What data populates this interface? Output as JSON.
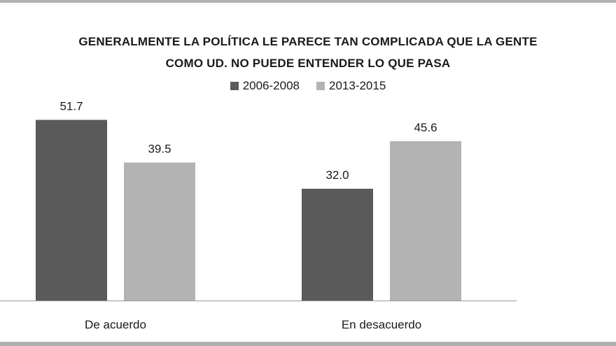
{
  "chart_data": {
    "type": "bar",
    "title": "GENERALMENTE LA POLÍTICA LE PARECE TAN COMPLICADA QUE LA GENTE COMO UD. NO PUEDE ENTENDER LO QUE PASA",
    "title_lines": [
      "GENERALMENTE LA POLÍTICA LE PARECE TAN COMPLICADA QUE LA GENTE",
      "COMO UD. NO PUEDE ENTENDER LO QUE PASA"
    ],
    "categories": [
      "De acuerdo",
      "En desacuerdo"
    ],
    "series": [
      {
        "name": "2006-2008",
        "values": [
          51.7,
          32.0
        ],
        "labels": [
          "51.7",
          "32.0"
        ],
        "color": "#5a5a5a"
      },
      {
        "name": "2013-2015",
        "values": [
          39.5,
          45.6
        ],
        "labels": [
          "39.5",
          "45.6"
        ],
        "color": "#b3b3b3"
      }
    ],
    "ylim": [
      0,
      60
    ],
    "grid": false,
    "legend_position": "top"
  }
}
